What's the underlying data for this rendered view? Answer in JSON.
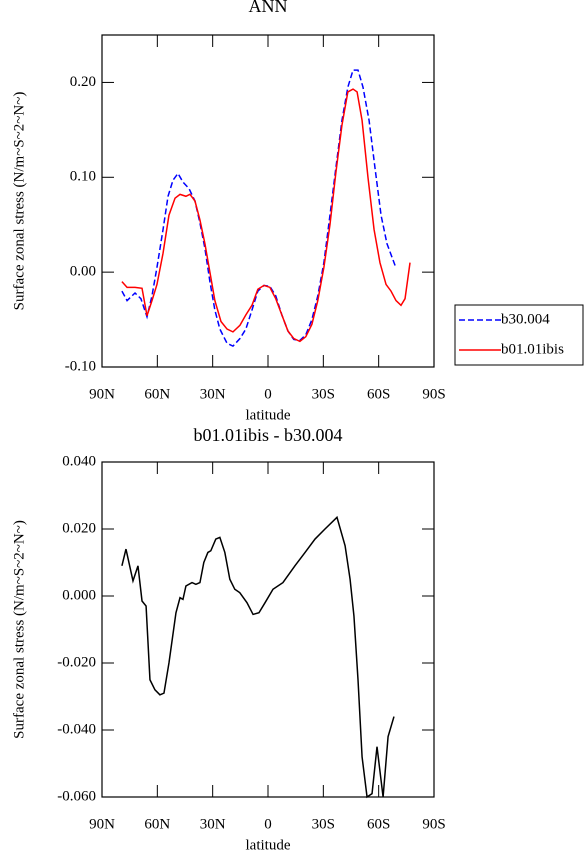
{
  "chart_data": [
    {
      "type": "line",
      "title": "ANN",
      "xlabel": "latitude",
      "ylabel": "Surface zonal stress (N/m~S~2~N~)",
      "xlim": [
        90,
        -90
      ],
      "xticks": [
        {
          "value": 90,
          "label": "90N"
        },
        {
          "value": 60,
          "label": "60N"
        },
        {
          "value": 30,
          "label": "30N"
        },
        0,
        {
          "value": -30,
          "label": "30S"
        },
        {
          "value": -60,
          "label": "60S"
        },
        {
          "value": -90,
          "label": "90S"
        }
      ],
      "ylim": [
        -0.1,
        0.25
      ],
      "yticks": [
        {
          "value": -0.1,
          "label": "-0.10"
        },
        {
          "value": 0,
          "label": "0.00"
        },
        {
          "value": 0.1,
          "label": "0.10"
        },
        {
          "value": 0.2,
          "label": "0.20"
        }
      ],
      "legend": "outside-right",
      "series": [
        {
          "name": "b30.004",
          "color": "#0000ff",
          "style": "dashed",
          "x": [
            79.2,
            76.4,
            72.1,
            68.9,
            65.6,
            62.9,
            60.2,
            56.9,
            54.2,
            51.5,
            48.8,
            46.1,
            42.8,
            39.6,
            36.9,
            34.2,
            31.5,
            28.8,
            26.1,
            22.2,
            19.0,
            15.2,
            12.0,
            8.7,
            5.5,
            2.2,
            -1.0,
            -4.2,
            -7.5,
            -10.8,
            -14.0,
            -17.3,
            -20.5,
            -23.8,
            -27.0,
            -30.3,
            -33.6,
            -36.8,
            -40.1,
            -43.3,
            -46.1,
            -48.8,
            -51.5,
            -54.8,
            -58.0,
            -61.3,
            -64.5,
            -68.9
          ],
          "values": [
            -0.02,
            -0.03,
            -0.022,
            -0.028,
            -0.047,
            -0.025,
            0.005,
            0.045,
            0.08,
            0.097,
            0.104,
            0.095,
            0.088,
            0.075,
            0.052,
            0.025,
            -0.01,
            -0.04,
            -0.06,
            -0.075,
            -0.078,
            -0.07,
            -0.06,
            -0.04,
            -0.02,
            -0.014,
            -0.015,
            -0.025,
            -0.045,
            -0.062,
            -0.071,
            -0.072,
            -0.066,
            -0.05,
            -0.025,
            0.01,
            0.06,
            0.11,
            0.16,
            0.195,
            0.213,
            0.213,
            0.195,
            0.16,
            0.11,
            0.06,
            0.03,
            0.007
          ]
        },
        {
          "name": "b01.01ibis",
          "color": "#ff0000",
          "style": "solid",
          "x": [
            79.2,
            76.4,
            72.1,
            68.3,
            65.6,
            62.9,
            60.2,
            56.9,
            53.7,
            50.4,
            47.7,
            44.5,
            42.3,
            39.6,
            36.9,
            34.2,
            31.5,
            28.8,
            25.5,
            22.2,
            19.0,
            15.2,
            12.0,
            8.7,
            5.5,
            2.2,
            -1.0,
            -4.2,
            -7.5,
            -10.8,
            -14.0,
            -17.3,
            -20.5,
            -23.8,
            -27.0,
            -30.3,
            -33.6,
            -36.8,
            -40.1,
            -43.3,
            -46.1,
            -48.3,
            -51.0,
            -54.2,
            -57.5,
            -60.7,
            -64.0,
            -66.7,
            -69.4,
            -72.1,
            -74.3,
            -77.0
          ],
          "values": [
            -0.01,
            -0.016,
            -0.016,
            -0.017,
            -0.046,
            -0.03,
            -0.013,
            0.02,
            0.06,
            0.078,
            0.082,
            0.08,
            0.082,
            0.075,
            0.055,
            0.03,
            0.0,
            -0.03,
            -0.052,
            -0.06,
            -0.063,
            -0.056,
            -0.045,
            -0.035,
            -0.018,
            -0.014,
            -0.016,
            -0.028,
            -0.045,
            -0.062,
            -0.07,
            -0.073,
            -0.068,
            -0.055,
            -0.03,
            0.005,
            0.05,
            0.105,
            0.155,
            0.19,
            0.193,
            0.19,
            0.16,
            0.1,
            0.045,
            0.01,
            -0.013,
            -0.02,
            -0.03,
            -0.035,
            -0.028,
            0.01
          ]
        }
      ]
    },
    {
      "type": "line",
      "title": "b01.01ibis - b30.004",
      "xlabel": "latitude",
      "ylabel": "Surface zonal stress (N/m~S~2~N~)",
      "xlim": [
        90,
        -90
      ],
      "xticks": [
        {
          "value": 90,
          "label": "90N"
        },
        {
          "value": 60,
          "label": "60N"
        },
        {
          "value": 30,
          "label": "30N"
        },
        0,
        {
          "value": -30,
          "label": "30S"
        },
        {
          "value": -60,
          "label": "60S"
        },
        {
          "value": -90,
          "label": "90S"
        }
      ],
      "ylim": [
        -0.06,
        0.04
      ],
      "yticks": [
        {
          "value": -0.06,
          "label": "-0.060"
        },
        {
          "value": -0.04,
          "label": "-0.040"
        },
        {
          "value": -0.02,
          "label": "-0.020"
        },
        {
          "value": 0,
          "label": "0.000"
        },
        {
          "value": 0.02,
          "label": "0.020"
        },
        {
          "value": 0.04,
          "label": "0.040"
        }
      ],
      "series": [
        {
          "color": "#000000",
          "style": "solid",
          "x": [
            79.2,
            77.0,
            73.2,
            70.5,
            68.3,
            66.1,
            64.0,
            61.3,
            58.6,
            56.4,
            53.7,
            49.9,
            47.7,
            46.1,
            44.5,
            41.2,
            39.1,
            36.9,
            34.8,
            32.6,
            31.0,
            28.3,
            26.1,
            23.4,
            20.7,
            18.0,
            15.3,
            11.4,
            8.1,
            4.9,
            1.6,
            -2.7,
            -8.1,
            -14.6,
            -20.1,
            -25.5,
            -30.9,
            -37.4,
            -41.8,
            -44.5,
            -46.6,
            -48.8,
            -51.0,
            -53.7,
            -56.4,
            -59.1,
            -62.4,
            -65.1,
            -68.3
          ],
          "values": [
            0.009,
            0.014,
            0.0045,
            0.009,
            -0.0015,
            -0.003,
            -0.025,
            -0.028,
            -0.0295,
            -0.029,
            -0.02,
            -0.005,
            -0.0005,
            -0.001,
            0.003,
            0.004,
            0.0035,
            0.004,
            0.01,
            0.013,
            0.0135,
            0.017,
            0.0175,
            0.013,
            0.005,
            0.002,
            0.001,
            -0.002,
            -0.0055,
            -0.005,
            -0.002,
            0.002,
            0.004,
            0.009,
            0.013,
            0.017,
            0.02,
            0.0235,
            0.015,
            0.005,
            -0.006,
            -0.025,
            -0.048,
            -0.06,
            -0.059,
            -0.045,
            -0.06,
            -0.042,
            -0.036
          ]
        }
      ]
    }
  ]
}
